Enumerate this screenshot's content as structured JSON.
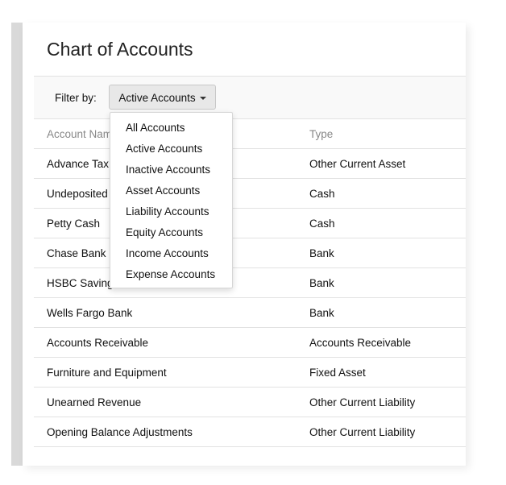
{
  "title": "Chart of Accounts",
  "filter": {
    "label": "Filter by:",
    "selected": "Active Accounts",
    "options": [
      "All Accounts",
      "Active Accounts",
      "Inactive Accounts",
      "Asset Accounts",
      "Liability Accounts",
      "Equity Accounts",
      "Income Accounts",
      "Expense Accounts"
    ]
  },
  "table": {
    "headers": [
      "Account Name",
      "Type"
    ],
    "rows": [
      [
        "Advance Tax",
        "Other Current Asset"
      ],
      [
        "Undeposited Funds",
        "Cash"
      ],
      [
        "Petty Cash",
        "Cash"
      ],
      [
        "Chase Bank",
        "Bank"
      ],
      [
        "HSBC Savings",
        "Bank"
      ],
      [
        "Wells Fargo Bank",
        "Bank"
      ],
      [
        "Accounts Receivable",
        "Accounts Receivable"
      ],
      [
        "Furniture and Equipment",
        "Fixed Asset"
      ],
      [
        "Unearned Revenue",
        "Other Current Liability"
      ],
      [
        "Opening Balance Adjustments",
        "Other Current Liability"
      ]
    ]
  }
}
